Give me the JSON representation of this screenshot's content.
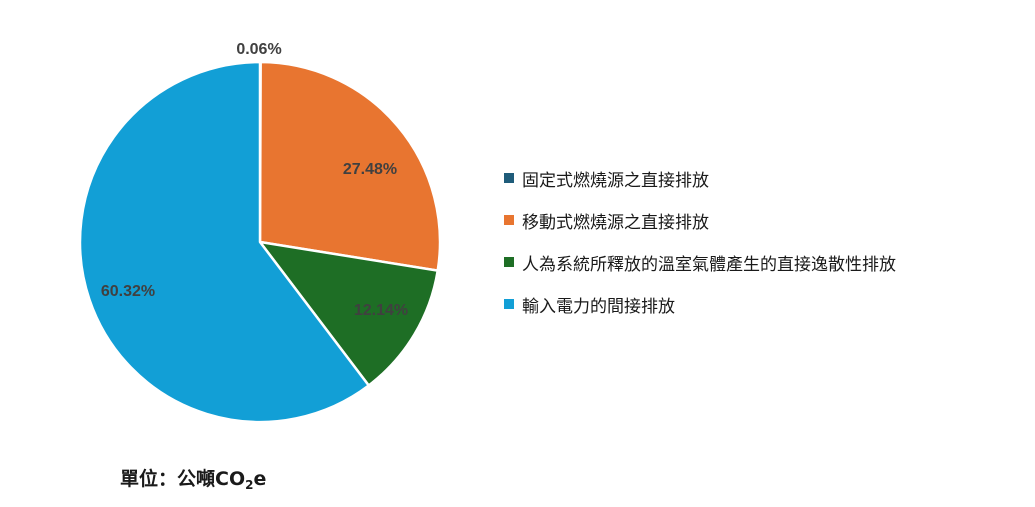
{
  "chart_data": {
    "type": "pie",
    "title": "",
    "legend_position": "right",
    "slices": [
      {
        "name": "固定式燃燒源之直接排放",
        "value": 0.06,
        "label": "0.06%",
        "color": "#1f5c7a"
      },
      {
        "name": "移動式燃燒源之直接排放",
        "value": 27.48,
        "label": "27.48%",
        "color": "#e87530"
      },
      {
        "name": "人為系統所釋放的溫室氣體產生的直接逸散性排放",
        "value": 12.14,
        "label": "12.14%",
        "color": "#1e6e25"
      },
      {
        "name": "輸入電力的間接排放",
        "value": 60.32,
        "label": "60.32%",
        "color": "#129fd6"
      }
    ]
  },
  "unit_note": {
    "prefix": "單位：公噸CO",
    "subscript": "2",
    "suffix": "e"
  }
}
